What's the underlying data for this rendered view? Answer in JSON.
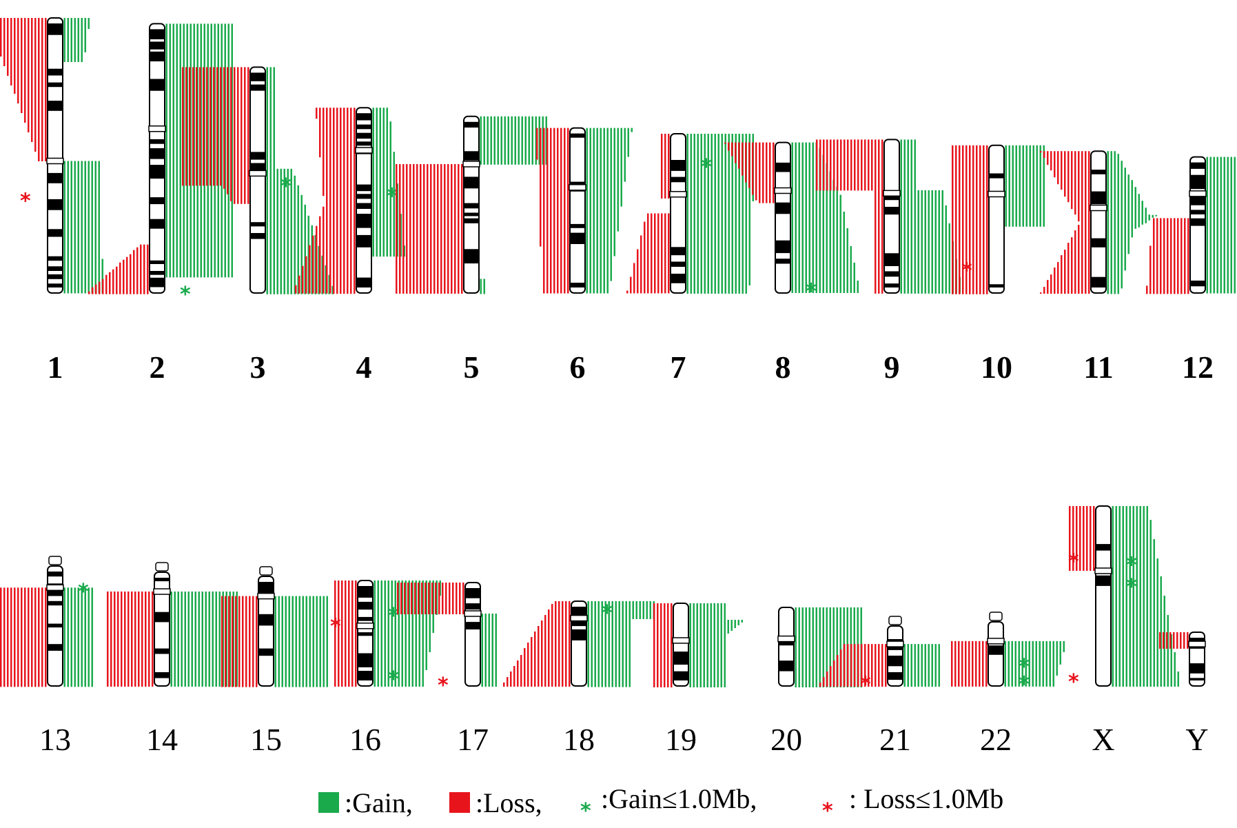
{
  "colors": {
    "gain": "#1aaa4c",
    "loss": "#e8141c",
    "band": "#000000",
    "outline": "#000000"
  },
  "chromosomes": [
    {
      "label": "1",
      "row": 1,
      "len": 0.95,
      "cen": 0.52,
      "loss": [
        [
          0.0,
          0.52,
          0.85,
          0.06
        ]
      ],
      "gain": [
        [
          0.0,
          0.16,
          0.35,
          0.25
        ],
        [
          0.52,
          1.0,
          0.5,
          0.55
        ]
      ],
      "gain_stars": [],
      "loss_stars": [
        0.66
      ]
    },
    {
      "label": "2",
      "row": 1,
      "len": 0.93,
      "cen": 0.39,
      "loss": [
        [
          0.82,
          1.0,
          0.08,
          0.9
        ]
      ],
      "gain": [
        [
          0.0,
          0.94,
          1.0,
          1.0
        ],
        [
          0.3,
          0.9,
          0.7,
          0.3
        ]
      ],
      "gain_stars": [
        1.0
      ],
      "loss_stars": []
    },
    {
      "label": "3",
      "row": 1,
      "len": 0.78,
      "cen": 0.47,
      "loss": [
        [
          0.0,
          0.52,
          1.0,
          1.0
        ],
        [
          0.52,
          0.6,
          0.35,
          0.2
        ]
      ],
      "gain": [
        [
          0.0,
          0.45,
          0.08,
          0.08
        ],
        [
          0.45,
          1.0,
          0.35,
          1.0
        ]
      ],
      "gain_stars": [
        0.52
      ],
      "loss_stars": []
    },
    {
      "label": "4",
      "row": 1,
      "len": 0.64,
      "cen": 0.23,
      "loss": [
        [
          0.0,
          1.0,
          0.55,
          0.3
        ],
        [
          0.4,
          1.0,
          0.3,
          0.9
        ]
      ],
      "gain": [
        [
          0.0,
          0.8,
          0.2,
          0.45
        ]
      ],
      "gain_stars": [
        0.47
      ],
      "loss_stars": []
    },
    {
      "label": "5",
      "row": 1,
      "len": 0.61,
      "cen": 0.27,
      "loss": [
        [
          0.27,
          1.0,
          1.0,
          1.0
        ],
        [
          0.27,
          0.55,
          1.0,
          0.2
        ]
      ],
      "gain": [
        [
          0.0,
          0.27,
          1.0,
          1.0
        ],
        [
          0.92,
          1.0,
          0.05,
          0.05
        ]
      ],
      "gain_stars": [],
      "loss_stars": []
    },
    {
      "label": "6",
      "row": 1,
      "len": 0.57,
      "cen": 0.36,
      "loss": [
        [
          0.0,
          1.0,
          0.45,
          0.35
        ]
      ],
      "gain": [
        [
          0.0,
          1.0,
          0.65,
          0.3
        ]
      ],
      "gain_stars": [],
      "loss_stars": []
    },
    {
      "label": "7",
      "row": 1,
      "len": 0.55,
      "cen": 0.38,
      "loss": [
        [
          0.0,
          0.4,
          0.08,
          0.08
        ],
        [
          0.5,
          1.0,
          0.3,
          0.6
        ]
      ],
      "gain": [
        [
          0.0,
          1.0,
          1.0,
          0.9
        ],
        [
          0.2,
          0.6,
          0.5,
          0.2
        ]
      ],
      "gain_stars": [
        0.2
      ],
      "loss_stars": []
    },
    {
      "label": "8",
      "row": 1,
      "len": 0.52,
      "cen": 0.32,
      "loss": [
        [
          0.0,
          0.4,
          0.7,
          0.2
        ]
      ],
      "gain": [
        [
          0.0,
          0.35,
          0.35,
          0.7
        ],
        [
          0.35,
          1.0,
          0.7,
          1.0
        ]
      ],
      "gain_stars": [
        0.98
      ],
      "loss_stars": []
    },
    {
      "label": "9",
      "row": 1,
      "len": 0.53,
      "cen": 0.35,
      "loss": [
        [
          0.0,
          0.33,
          1.0,
          1.0
        ],
        [
          0.33,
          1.0,
          0.1,
          0.1
        ]
      ],
      "gain": [
        [
          0.0,
          0.33,
          0.2,
          0.2
        ],
        [
          0.33,
          1.0,
          0.6,
          0.9
        ]
      ],
      "gain_stars": [],
      "loss_stars": []
    },
    {
      "label": "10",
      "row": 1,
      "len": 0.51,
      "cen": 0.33,
      "loss": [
        [
          0.0,
          1.0,
          0.5,
          0.5
        ]
      ],
      "gain": [
        [
          0.0,
          0.55,
          0.55,
          0.55
        ]
      ],
      "gain_stars": [],
      "loss_stars": [
        0.84
      ]
    },
    {
      "label": "11",
      "row": 1,
      "len": 0.49,
      "cen": 0.4,
      "loss": [
        [
          0.0,
          0.5,
          0.7,
          0.1
        ],
        [
          0.5,
          1.0,
          0.1,
          0.7
        ]
      ],
      "gain": [
        [
          0.0,
          0.45,
          0.1,
          0.6
        ],
        [
          0.45,
          0.6,
          0.7,
          0.2
        ],
        [
          0.55,
          1.0,
          0.35,
          0.15
        ]
      ],
      "gain_stars": [],
      "loss_stars": []
    },
    {
      "label": "12",
      "row": 1,
      "len": 0.47,
      "cen": 0.27,
      "loss": [
        [
          0.45,
          1.0,
          0.5,
          0.6
        ]
      ],
      "gain": [
        [
          0.0,
          1.0,
          1.0,
          0.6
        ]
      ],
      "gain_stars": [],
      "loss_stars": []
    },
    {
      "label": "13",
      "row": 2,
      "len": 0.58,
      "cen": 0.18,
      "acro": true,
      "loss": [
        [
          0.18,
          1.0,
          1.0,
          1.0
        ]
      ],
      "gain": [
        [
          0.18,
          1.0,
          0.4,
          0.4
        ]
      ],
      "gain_stars": [
        0.2
      ],
      "loss_stars": []
    },
    {
      "label": "14",
      "row": 2,
      "len": 0.55,
      "cen": 0.17,
      "acro": true,
      "loss": [
        [
          0.17,
          1.0,
          0.65,
          0.65
        ]
      ],
      "gain": [
        [
          0.17,
          1.0,
          1.0,
          1.0
        ]
      ],
      "gain_stars": [],
      "loss_stars": []
    },
    {
      "label": "15",
      "row": 2,
      "len": 0.53,
      "cen": 0.18,
      "acro": true,
      "loss": [
        [
          0.18,
          1.0,
          0.5,
          0.5
        ]
      ],
      "gain": [
        [
          0.18,
          1.0,
          0.75,
          0.75
        ]
      ],
      "gain_stars": [],
      "loss_stars": []
    },
    {
      "label": "16",
      "row": 2,
      "len": 0.51,
      "cen": 0.43,
      "loss": [
        [
          0.0,
          1.0,
          0.3,
          0.3
        ]
      ],
      "gain": [
        [
          0.0,
          1.0,
          1.0,
          0.7
        ]
      ],
      "gain_stars": [
        0.32,
        0.92
      ],
      "loss_stars": [
        0.42
      ]
    },
    {
      "label": "17",
      "row": 2,
      "len": 0.5,
      "cen": 0.3,
      "loss": [
        [
          0.0,
          0.3,
          1.0,
          1.0
        ]
      ],
      "gain": [
        [
          0.3,
          1.0,
          0.2,
          0.2
        ]
      ],
      "gain_stars": [],
      "loss_stars": [
        0.98
      ]
    },
    {
      "label": "18",
      "row": 2,
      "len": 0.41,
      "cen": 0.2,
      "loss": [
        [
          0.0,
          1.0,
          0.2,
          1.0
        ]
      ],
      "gain": [
        [
          0.0,
          0.2,
          1.0,
          1.0
        ],
        [
          0.2,
          1.0,
          0.6,
          0.6
        ]
      ],
      "gain_stars": [
        0.12
      ],
      "loss_stars": []
    },
    {
      "label": "19",
      "row": 2,
      "len": 0.4,
      "cen": 0.45,
      "loss": [
        [
          0.0,
          1.0,
          0.25,
          0.25
        ]
      ],
      "gain": [
        [
          0.0,
          1.0,
          0.5,
          0.5
        ],
        [
          0.2,
          0.5,
          0.8,
          0.3
        ]
      ],
      "gain_stars": [],
      "loss_stars": []
    },
    {
      "label": "20",
      "row": 2,
      "len": 0.38,
      "cen": 0.4,
      "loss": [],
      "gain": [
        [
          0.0,
          1.0,
          1.0,
          1.0
        ]
      ],
      "gain_stars": [],
      "loss_stars": []
    },
    {
      "label": "21",
      "row": 2,
      "len": 0.29,
      "cen": 0.3,
      "acro": true,
      "loss": [
        [
          0.3,
          1.0,
          0.6,
          1.0
        ]
      ],
      "gain": [
        [
          0.3,
          1.0,
          0.5,
          0.5
        ]
      ],
      "gain_stars": [],
      "loss_stars": [
        0.95
      ]
    },
    {
      "label": "22",
      "row": 2,
      "len": 0.31,
      "cen": 0.3,
      "acro": true,
      "loss": [
        [
          0.3,
          1.0,
          0.5,
          0.5
        ]
      ],
      "gain": [
        [
          0.3,
          1.0,
          0.9,
          0.7
        ]
      ],
      "gain_stars": [
        0.68,
        0.95
      ],
      "loss_stars": []
    },
    {
      "label": "X",
      "row": 2,
      "len": 0.87,
      "cen": 0.36,
      "loss": [
        [
          0.0,
          0.36,
          0.35,
          0.35
        ]
      ],
      "gain": [
        [
          0.0,
          1.0,
          0.5,
          1.0
        ]
      ],
      "gain_stars": [
        0.32,
        0.44
      ],
      "loss_stars": [
        0.3,
        0.97
      ]
    },
    {
      "label": "Y",
      "row": 2,
      "len": 0.26,
      "cen": 0.22,
      "loss": [
        [
          0.0,
          0.3,
          0.4,
          0.4
        ]
      ],
      "gain": [],
      "gain_stars": [],
      "loss_stars": []
    }
  ],
  "legend": {
    "gain": ":Gain,",
    "loss": ":Loss,",
    "gain_small": ":Gain≤1.0Mb,",
    "loss_small": ": Loss≤1.0Mb"
  }
}
